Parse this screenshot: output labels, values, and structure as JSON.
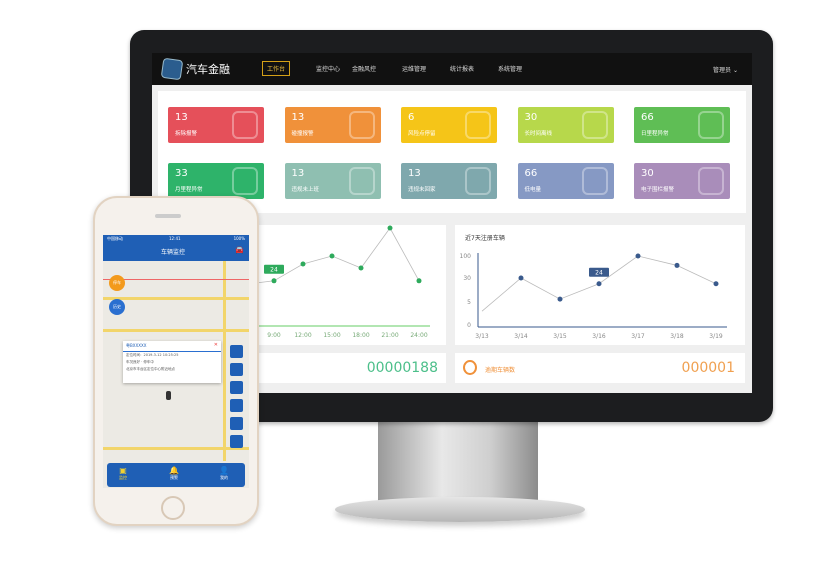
{
  "monitor": {
    "brand": "汽车金融",
    "nav": [
      "工作台",
      "监控中心",
      "金融风控",
      "运维管理",
      "统计报表",
      "系统管理"
    ],
    "active_nav": "工作台",
    "user": "管理员",
    "tiles": [
      {
        "value": "13",
        "label": "拆除报警",
        "color": "#e5505a"
      },
      {
        "value": "13",
        "label": "碰撞报警",
        "color": "#f0913a"
      },
      {
        "value": "6",
        "label": "风险点停留",
        "color": "#f5c518"
      },
      {
        "value": "30",
        "label": "长时间离线",
        "color": "#b7d84b"
      },
      {
        "value": "66",
        "label": "日里程异常",
        "color": "#5fbe55"
      },
      {
        "value": "33",
        "label": "月里程异常",
        "color": "#2eb36a"
      },
      {
        "value": "13",
        "label": "违规未上班",
        "color": "#8fbfb1"
      },
      {
        "value": "13",
        "label": "违规未回家",
        "color": "#7fa8ad"
      },
      {
        "value": "66",
        "label": "低电量",
        "color": "#8699c4"
      },
      {
        "value": "30",
        "label": "电子围栏报警",
        "color": "#a98dba"
      }
    ],
    "left_counter": "00000188",
    "right_counter_label": "逾期车辆数",
    "right_counter": "000001"
  },
  "chart_data": [
    {
      "type": "line",
      "title": "",
      "categories": [
        "9:00",
        "12:00",
        "15:00",
        "18:00",
        "21:00",
        "24:00"
      ],
      "values": [
        24,
        45,
        55,
        40,
        90,
        24
      ],
      "tooltip": "24",
      "color": "#2eaa5c"
    },
    {
      "type": "line",
      "title": "近7天注册车辆",
      "categories": [
        "3/13",
        "3/14",
        "3/15",
        "3/16",
        "3/17",
        "3/18",
        "3/19"
      ],
      "values": [
        3,
        30,
        8,
        24,
        100,
        70,
        24
      ],
      "yticks": [
        "100",
        "30",
        "5",
        "0"
      ],
      "tooltip": "24",
      "color": "#3a5a8c"
    }
  ],
  "phone": {
    "title": "车辆监控",
    "carrier": "中国移动",
    "time": "12:41",
    "battery": "100%",
    "popup_title": "粤BXXXXX",
    "popup_lines": [
      "定位时间：2019-3-12 10:25:25",
      "车况良好 · 停车中",
      "北京市丰台区定位中心附近地点"
    ],
    "map_buttons": [
      "停车",
      "历史"
    ],
    "tabs": [
      "监控",
      "预警",
      "我的"
    ]
  }
}
